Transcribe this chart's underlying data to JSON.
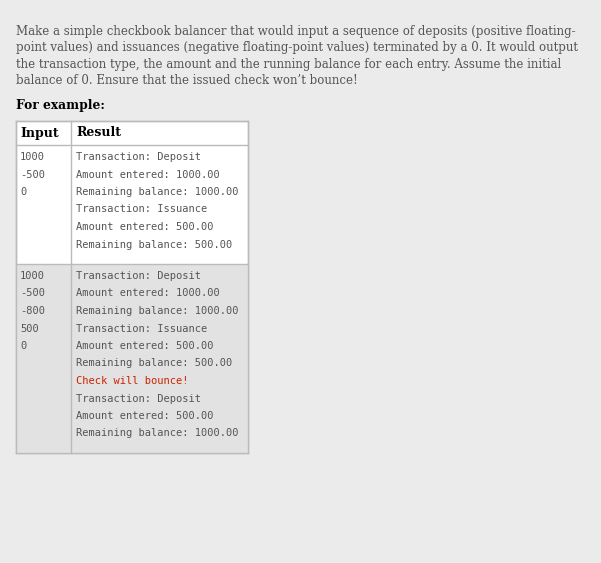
{
  "bg_color": "#ebebeb",
  "white": "#ffffff",
  "row2_bg": "#e2e2e2",
  "table_border_color": "#bbbbbb",
  "desc_color": "#555555",
  "label_color": "#000000",
  "mono_color": "#555555",
  "bounce_color": "#cc2200",
  "desc_lines": [
    "Make a simple checkbook balancer that would input a sequence of deposits (positive floating-",
    "point values) and issuances (negative floating-point values) terminated by a 0. It would output",
    "the transaction type, the amount and the running balance for each entry. Assume the initial",
    "balance of 0. Ensure that the issued check won’t bounce!"
  ],
  "for_example_label": "For example:",
  "header_input": "Input",
  "header_result": "Result",
  "row1_inputs": [
    "1000",
    "-500",
    "0"
  ],
  "row1_results": [
    "Transaction: Deposit",
    "Amount entered: 1000.00",
    "Remaining balance: 1000.00",
    "Transaction: Issuance",
    "Amount entered: 500.00",
    "Remaining balance: 500.00"
  ],
  "row2_inputs": [
    "1000",
    "-500",
    "-800",
    "500",
    "0"
  ],
  "row2_results": [
    "Transaction: Deposit",
    "Amount entered: 1000.00",
    "Remaining balance: 1000.00",
    "Transaction: Issuance",
    "Amount entered: 500.00",
    "Remaining balance: 500.00",
    "Check will bounce!",
    "Transaction: Deposit",
    "Amount entered: 500.00",
    "Remaining balance: 1000.00"
  ],
  "desc_fontsize": 8.5,
  "label_fontsize": 8.8,
  "mono_fontsize": 7.5,
  "header_fontsize": 9.0
}
